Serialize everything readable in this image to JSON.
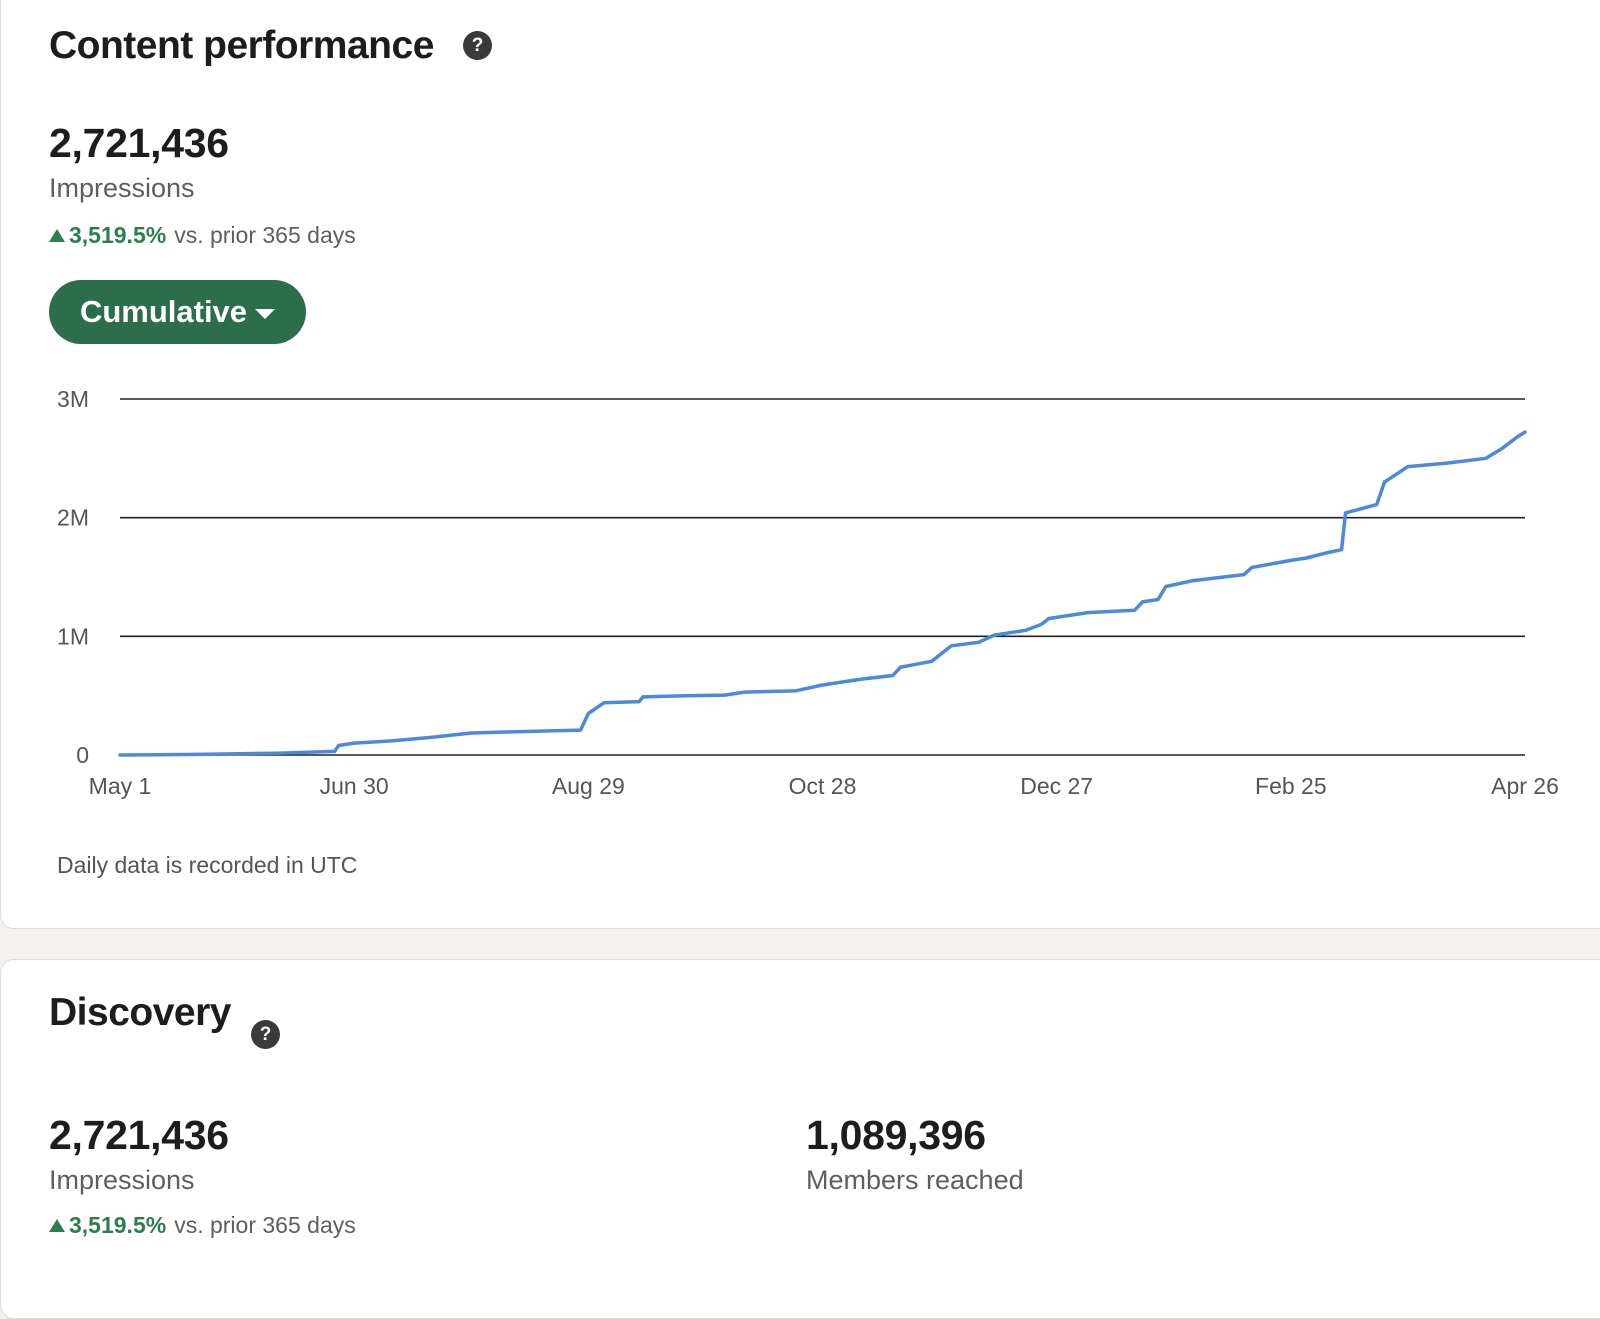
{
  "content_performance": {
    "title": "Content performance",
    "help_icon": "question-circle-icon",
    "impressions_value": "2,721,436",
    "impressions_label": "Impressions",
    "change_pct": "3,519.5%",
    "change_suffix": "vs. prior 365 days",
    "view_dropdown": "Cumulative",
    "footnote": "Daily data is recorded in UTC"
  },
  "discovery": {
    "title": "Discovery",
    "help_icon": "question-circle-icon",
    "impressions_value": "2,721,436",
    "impressions_label": "Impressions",
    "change_pct": "3,519.5%",
    "change_suffix": "vs. prior 365 days",
    "members_value": "1,089,396",
    "members_label": "Members reached"
  },
  "colors": {
    "accent_green": "#2c6e49",
    "positive_green": "#2e7d4f",
    "line_blue": "#4a89dc"
  },
  "chart_data": {
    "type": "line",
    "ylim": [
      0,
      3000000
    ],
    "y_ticks": [
      {
        "value": 0,
        "label": "0"
      },
      {
        "value": 1000000,
        "label": "1M"
      },
      {
        "value": 2000000,
        "label": "2M"
      },
      {
        "value": 3000000,
        "label": "3M"
      }
    ],
    "x_range_days": [
      0,
      360
    ],
    "x_ticks": [
      {
        "day": 0,
        "label": "May 1"
      },
      {
        "day": 60,
        "label": "Jun 30"
      },
      {
        "day": 120,
        "label": "Aug 29"
      },
      {
        "day": 180,
        "label": "Oct 28"
      },
      {
        "day": 240,
        "label": "Dec 27"
      },
      {
        "day": 300,
        "label": "Feb 25"
      },
      {
        "day": 360,
        "label": "Apr 26"
      }
    ],
    "grid": true,
    "series": [
      {
        "points": [
          [
            0,
            0
          ],
          [
            20,
            5000
          ],
          [
            40,
            15000
          ],
          [
            55,
            30000
          ],
          [
            56,
            80000
          ],
          [
            60,
            100000
          ],
          [
            70,
            120000
          ],
          [
            80,
            150000
          ],
          [
            90,
            185000
          ],
          [
            100,
            195000
          ],
          [
            118,
            210000
          ],
          [
            120,
            350000
          ],
          [
            124,
            440000
          ],
          [
            133,
            450000
          ],
          [
            134,
            490000
          ],
          [
            145,
            500000
          ],
          [
            155,
            505000
          ],
          [
            160,
            530000
          ],
          [
            173,
            540000
          ],
          [
            180,
            590000
          ],
          [
            190,
            640000
          ],
          [
            198,
            670000
          ],
          [
            200,
            740000
          ],
          [
            208,
            790000
          ],
          [
            213,
            920000
          ],
          [
            220,
            950000
          ],
          [
            224,
            1010000
          ],
          [
            232,
            1050000
          ],
          [
            236,
            1100000
          ],
          [
            238,
            1150000
          ],
          [
            248,
            1200000
          ],
          [
            260,
            1220000
          ],
          [
            262,
            1290000
          ],
          [
            266,
            1310000
          ],
          [
            268,
            1420000
          ],
          [
            275,
            1470000
          ],
          [
            288,
            1520000
          ],
          [
            290,
            1580000
          ],
          [
            300,
            1640000
          ],
          [
            304,
            1660000
          ],
          [
            310,
            1710000
          ],
          [
            313,
            1730000
          ],
          [
            314,
            2040000
          ],
          [
            322,
            2110000
          ],
          [
            324,
            2300000
          ],
          [
            330,
            2430000
          ],
          [
            340,
            2460000
          ],
          [
            350,
            2500000
          ],
          [
            354,
            2580000
          ],
          [
            358,
            2680000
          ],
          [
            360,
            2721436
          ]
        ]
      }
    ]
  }
}
